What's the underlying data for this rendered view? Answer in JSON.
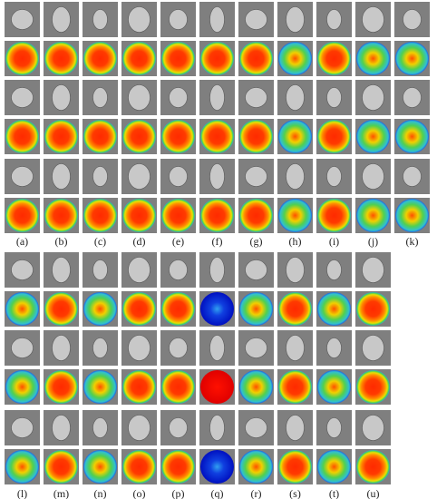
{
  "panels": {
    "top": {
      "labels": [
        "(a)",
        "(b)",
        "(c)",
        "(d)",
        "(e)",
        "(f)",
        "(g)",
        "(h)",
        "(i)",
        "(j)",
        "(k)"
      ]
    },
    "bottom": {
      "labels": [
        "(l)",
        "(m)",
        "(n)",
        "(o)",
        "(p)",
        "(q)",
        "(r)",
        "(s)",
        "(t)",
        "(u)"
      ]
    }
  }
}
